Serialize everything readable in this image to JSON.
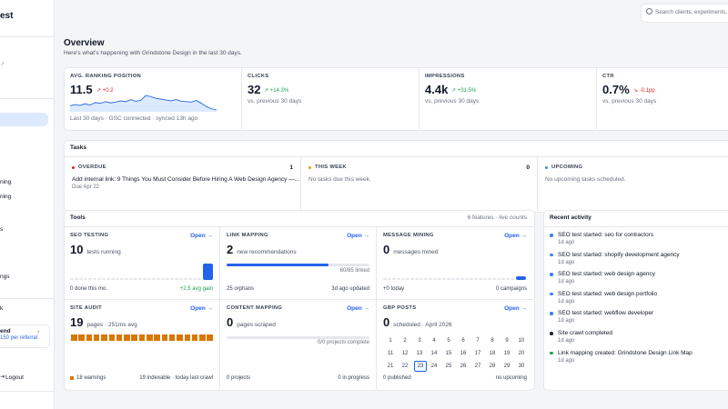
{
  "sidebar": {
    "brand": "est",
    "items": [
      "ning",
      "ning",
      "s",
      "ngs",
      "k"
    ],
    "referral": {
      "title": "end",
      "subtitle": "150 per referral"
    },
    "logout": "Logout"
  },
  "search_placeholder": "Search clients, experiments, p",
  "overview": {
    "title": "Overview",
    "subtitle": "Here's what's happening with Grindstone Design in the last 30 days."
  },
  "kpis": [
    {
      "label": "AVG. RANKING POSITION",
      "value": "11.5",
      "delta": "↗ +0.2",
      "delta_color": "#dc2626",
      "footer": "Last 30 days · GSC connected · synced 13h ago",
      "sparkline": [
        4,
        4.3,
        4.1,
        4.5,
        4.2,
        4.8,
        4.6,
        5,
        4.7,
        4.9,
        5.2,
        5,
        5.5,
        5.1,
        5.3,
        6.5,
        6.2,
        5.8,
        5.6,
        5.4,
        5.2,
        5.5,
        5.1,
        5,
        4.9,
        5.3,
        4.6,
        3.8,
        3.3,
        3
      ]
    },
    {
      "label": "CLICKS",
      "value": "32",
      "delta": "↗ +14.3%",
      "delta_color": "#16a34a",
      "footer": "vs. previous 30 days"
    },
    {
      "label": "IMPRESSIONS",
      "value": "4.4k",
      "delta": "↗ +31.5%",
      "delta_color": "#16a34a",
      "footer": "vs. previous 30 days"
    },
    {
      "label": "CTR",
      "value": "0.7%",
      "delta": "↘ -0.1pp",
      "delta_color": "#dc2626",
      "footer": "vs. previous 30 days"
    }
  ],
  "tasks": {
    "title": "Tasks",
    "columns": [
      {
        "label": "OVERDUE",
        "count": "1",
        "dot": "#dc2626",
        "items": [
          {
            "title": "Add internal link: 9 Things You Must Consider Before Hiring A Web Design Agency —...",
            "due": "Due Apr 22"
          }
        ]
      },
      {
        "label": "THIS WEEK",
        "count": "0",
        "dot": "#f59e0b",
        "empty": "No tasks due this week."
      },
      {
        "label": "UPCOMING",
        "dot": "#3b82f6",
        "empty": "No upcoming tasks scheduled."
      }
    ]
  },
  "tools": {
    "title": "Tools",
    "meta": "6 features · live counts",
    "cards": [
      {
        "name": "SEO TESTING",
        "action": "Open →",
        "value": "10",
        "unit": "tests running",
        "footer_left": "0 done this mo.",
        "footer_right": "+2.5 avg gain",
        "footer_right_color": "#16a34a",
        "visual": "bars"
      },
      {
        "name": "LINK MAPPING",
        "action": "Open →",
        "value": "2",
        "unit": "new recommendations",
        "progress_label": "60/85 linked",
        "footer_left": "25 orphans",
        "footer_right": "3d ago updated",
        "visual": "progress"
      },
      {
        "name": "MESSAGE MINING",
        "action": "Open →",
        "value": "0",
        "unit": "messages mined",
        "footer_left": "+0 today",
        "footer_right": "0 campaigns",
        "visual": "flatbars"
      },
      {
        "name": "SITE AUDIT",
        "action": "Open →",
        "value": "19",
        "unit": "pages · 251ms avg",
        "footer_left": "18 warnings",
        "footer_right": "19 indexable · today last crawl",
        "visual": "squares"
      },
      {
        "name": "CONTENT MAPPING",
        "action": "Open →",
        "value": "0",
        "unit": "pages scraped",
        "progress_label": "0/0 projects complete",
        "footer_left": "0 projects",
        "footer_right": "0 in progress",
        "visual": "emptyprogress"
      },
      {
        "name": "GBP POSTS",
        "action": "Open →",
        "value": "0",
        "unit": "scheduled · April 2026",
        "footer_left": "0 published",
        "footer_right": "no upcoming",
        "visual": "calendar",
        "calendar": {
          "highlight": "23",
          "days": [
            "1",
            "2",
            "3",
            "4",
            "5",
            "6",
            "7",
            "8",
            "9",
            "10",
            "11",
            "12",
            "13",
            "14",
            "15",
            "16",
            "17",
            "18",
            "19",
            "20",
            "21",
            "22",
            "23",
            "24",
            "25",
            "26",
            "27",
            "28",
            "29",
            "30"
          ]
        }
      }
    ]
  },
  "activity": {
    "title": "Recent activity",
    "items": [
      {
        "title": "SEO test started: seo for contractors",
        "time": "1d ago",
        "dot": "#3b82f6"
      },
      {
        "title": "SEO test started: shopify development agency",
        "time": "1d ago",
        "dot": "#3b82f6"
      },
      {
        "title": "SEO test started: web design agency",
        "time": "1d ago",
        "dot": "#3b82f6"
      },
      {
        "title": "SEO test started: web design portfolio",
        "time": "1d ago",
        "dot": "#3b82f6"
      },
      {
        "title": "SEO test started: webflow developer",
        "time": "1d ago",
        "dot": "#3b82f6"
      },
      {
        "title": "Site crawl completed",
        "time": "1d ago",
        "dot": "#1f2937"
      },
      {
        "title": "Link mapping created: Grindstone Design Link Map",
        "time": "1d ago",
        "dot": "#16a34a"
      }
    ]
  }
}
